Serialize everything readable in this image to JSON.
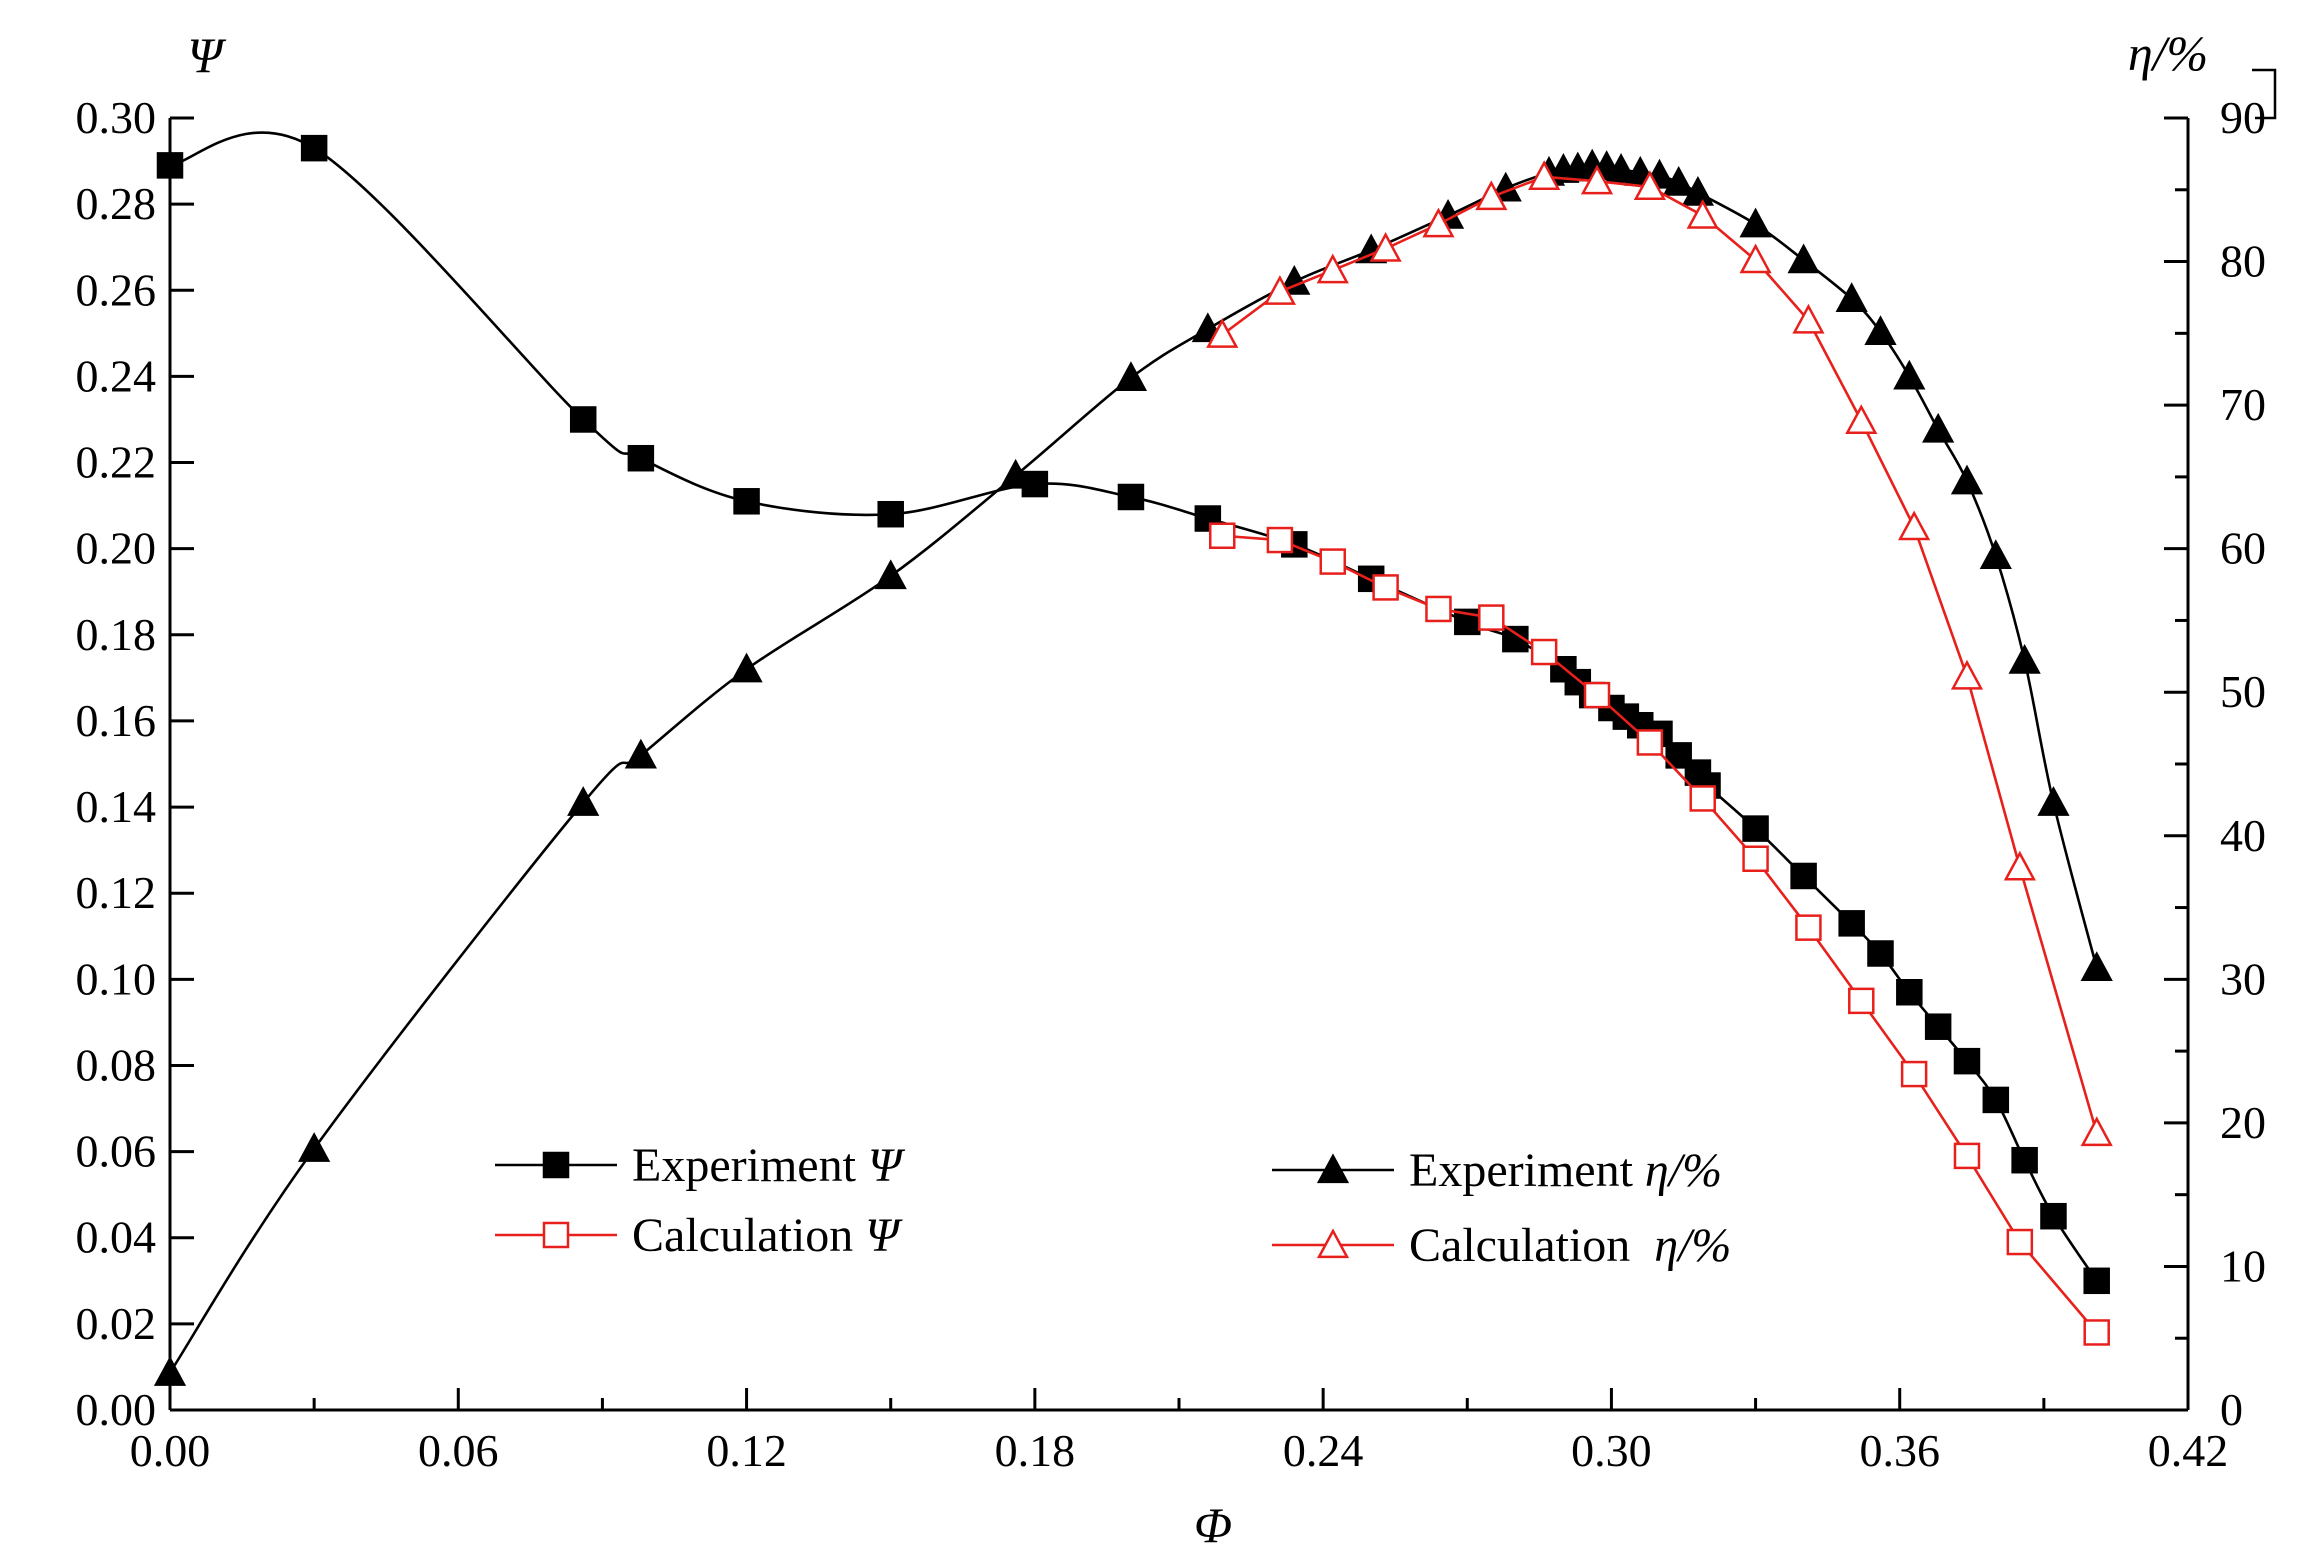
{
  "chart_data": {
    "type": "line",
    "title": "",
    "xlabel": "Φ",
    "ylabel": "Ψ",
    "y2label": "η/%",
    "xlim": [
      0,
      0.42
    ],
    "ylim": [
      0,
      0.3
    ],
    "y2lim": [
      0,
      90
    ],
    "x_ticks": [
      "0.00",
      "0.06",
      "0.12",
      "0.18",
      "0.24",
      "0.30",
      "0.36",
      "0.42"
    ],
    "y_ticks": [
      "0.00",
      "0.02",
      "0.04",
      "0.06",
      "0.08",
      "0.10",
      "0.12",
      "0.14",
      "0.16",
      "0.18",
      "0.20",
      "0.22",
      "0.24",
      "0.26",
      "0.28",
      "0.30"
    ],
    "y2_ticks": [
      "0",
      "10",
      "20",
      "30",
      "40",
      "50",
      "60",
      "70",
      "80",
      "90"
    ],
    "legend_position": "lower-center",
    "series": [
      {
        "name": "Experiment Ψ",
        "legend_text": "Experiment ",
        "legend_symbol": "Ψ",
        "axis": "left",
        "color": "#000000",
        "marker": "square-filled",
        "smooth": true,
        "x": [
          0.0,
          0.03,
          0.086,
          0.098,
          0.12,
          0.15,
          0.18,
          0.2,
          0.216,
          0.234,
          0.25,
          0.27,
          0.28,
          0.29,
          0.293,
          0.296,
          0.3,
          0.303,
          0.306,
          0.31,
          0.314,
          0.318,
          0.32,
          0.33,
          0.34,
          0.35,
          0.356,
          0.362,
          0.368,
          0.374,
          0.38,
          0.386,
          0.392,
          0.401
        ],
        "values": [
          0.289,
          0.293,
          0.23,
          0.221,
          0.211,
          0.208,
          0.215,
          0.212,
          0.207,
          0.201,
          0.193,
          0.183,
          0.179,
          0.172,
          0.169,
          0.166,
          0.163,
          0.161,
          0.159,
          0.157,
          0.152,
          0.148,
          0.145,
          0.135,
          0.124,
          0.113,
          0.106,
          0.097,
          0.089,
          0.081,
          0.072,
          0.058,
          0.045,
          0.03
        ]
      },
      {
        "name": "Calculation Ψ",
        "legend_text": "Calculation ",
        "legend_symbol": "Ψ",
        "axis": "left",
        "color": "#e8201c",
        "marker": "square-open",
        "smooth": false,
        "x": [
          0.219,
          0.231,
          0.242,
          0.253,
          0.264,
          0.275,
          0.286,
          0.297,
          0.308,
          0.319,
          0.33,
          0.341,
          0.352,
          0.363,
          0.374,
          0.385,
          0.401
        ],
        "values": [
          0.203,
          0.202,
          0.197,
          0.191,
          0.186,
          0.184,
          0.176,
          0.166,
          0.155,
          0.142,
          0.128,
          0.112,
          0.095,
          0.078,
          0.059,
          0.039,
          0.018
        ]
      },
      {
        "name": "Experiment η/%",
        "legend_text": "Experiment ",
        "legend_symbol": "η/%",
        "axis": "right",
        "color": "#000000",
        "marker": "triangle-filled",
        "smooth": true,
        "x": [
          0.0,
          0.03,
          0.086,
          0.098,
          0.12,
          0.15,
          0.176,
          0.2,
          0.216,
          0.234,
          0.25,
          0.266,
          0.278,
          0.287,
          0.29,
          0.293,
          0.296,
          0.299,
          0.302,
          0.306,
          0.31,
          0.314,
          0.318,
          0.33,
          0.34,
          0.35,
          0.356,
          0.362,
          0.368,
          0.374,
          0.38,
          0.386,
          0.392,
          0.401
        ],
        "values": [
          2.6,
          18.2,
          42.3,
          45.6,
          51.6,
          58.1,
          65.1,
          71.9,
          75.3,
          78.6,
          80.8,
          83.2,
          85.1,
          86.2,
          86.4,
          86.5,
          86.7,
          86.6,
          86.4,
          86.2,
          86.0,
          85.5,
          84.8,
          82.6,
          80.1,
          77.4,
          75.1,
          72.0,
          68.3,
          64.7,
          59.5,
          52.2,
          42.3,
          30.8
        ]
      },
      {
        "name": "Calculation η/%",
        "legend_text": "Calculation  ",
        "legend_symbol": "η/%",
        "axis": "right",
        "color": "#e8201c",
        "marker": "triangle-open",
        "smooth": false,
        "x": [
          0.219,
          0.231,
          0.242,
          0.253,
          0.264,
          0.275,
          0.286,
          0.297,
          0.308,
          0.319,
          0.33,
          0.341,
          0.352,
          0.363,
          0.374,
          0.385,
          0.401
        ],
        "values": [
          74.9,
          77.9,
          79.4,
          80.9,
          82.6,
          84.5,
          85.9,
          85.6,
          85.2,
          83.2,
          80.1,
          75.9,
          68.9,
          61.5,
          51.1,
          37.8,
          19.3
        ]
      }
    ]
  }
}
